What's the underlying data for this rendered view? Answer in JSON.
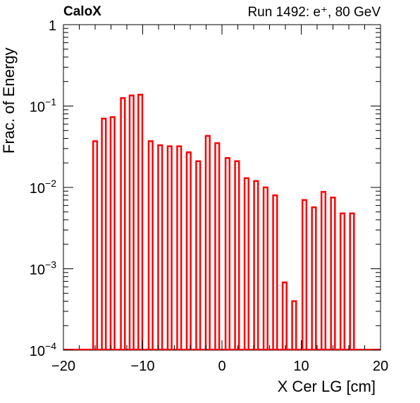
{
  "chart_data": {
    "type": "bar",
    "label_left": "CaloX",
    "label_right": "Run 1492: e⁺, 80 GeV",
    "xlabel": "X Cer LG [cm]",
    "ylabel": "Frac. of Energy",
    "xlim": [
      -20,
      20
    ],
    "ylim": [
      0.0001,
      1
    ],
    "ylog": true,
    "x_ticks": [
      "−20",
      "−10",
      "0",
      "10",
      "20"
    ],
    "y_ticks": [
      {
        "base": "1",
        "exp": ""
      },
      {
        "base": "10",
        "exp": "−1"
      },
      {
        "base": "10",
        "exp": "−2"
      },
      {
        "base": "10",
        "exp": "−3"
      },
      {
        "base": "10",
        "exp": "−4"
      }
    ],
    "bar_color": "#ff0000",
    "x": [
      -16.0,
      -14.9,
      -13.8,
      -12.5,
      -11.4,
      -10.3,
      -9.0,
      -7.8,
      -6.6,
      -5.4,
      -4.2,
      -3.0,
      -1.8,
      -0.6,
      0.7,
      1.9,
      3.1,
      4.3,
      5.5,
      6.7,
      7.9,
      9.1,
      10.4,
      11.6,
      12.8,
      14.0,
      15.2,
      16.4
    ],
    "values": [
      0.037,
      0.07,
      0.073,
      0.125,
      0.135,
      0.138,
      0.037,
      0.033,
      0.032,
      0.032,
      0.027,
      0.021,
      0.043,
      0.035,
      0.023,
      0.021,
      0.013,
      0.012,
      0.01,
      0.008,
      0.00068,
      0.0004,
      0.007,
      0.0057,
      0.0088,
      0.0075,
      0.0048,
      0.0048
    ]
  }
}
